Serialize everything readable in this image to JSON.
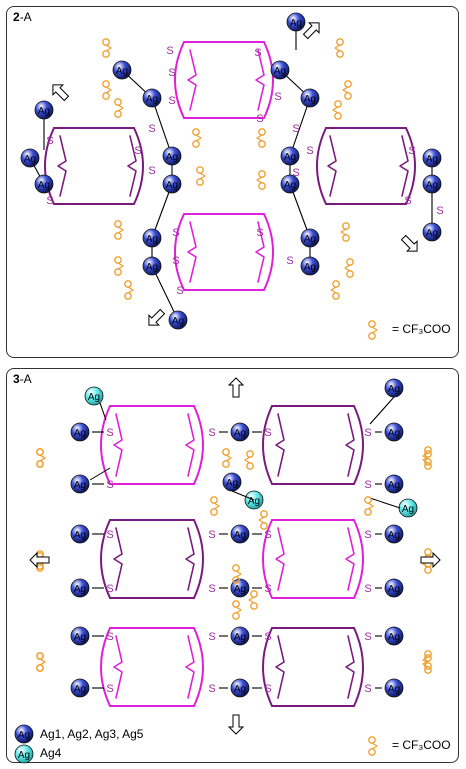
{
  "panel_2a": {
    "label_num": "2",
    "label_suffix": "-A",
    "legend": "= CF₃COO"
  },
  "panel_3a": {
    "label_num": "3",
    "label_suffix": "-A",
    "legend": "= CF₃COO",
    "key": [
      {
        "text": "Ag1, Ag2, Ag3, Ag5",
        "color": "#3c4fd8"
      },
      {
        "text": "Ag4",
        "color": "#5de8e8"
      }
    ]
  },
  "atom_labels": {
    "silver": "Ag",
    "sulfur": "S"
  },
  "colors": {
    "silver": "#3c4fd8",
    "silver_ag4": "#5de8e8",
    "sulfur": "#9b2fa0",
    "magenta_ring": "#e020d8",
    "purple_ring": "#7a1a7e",
    "carboxylate": "#f0a030"
  }
}
